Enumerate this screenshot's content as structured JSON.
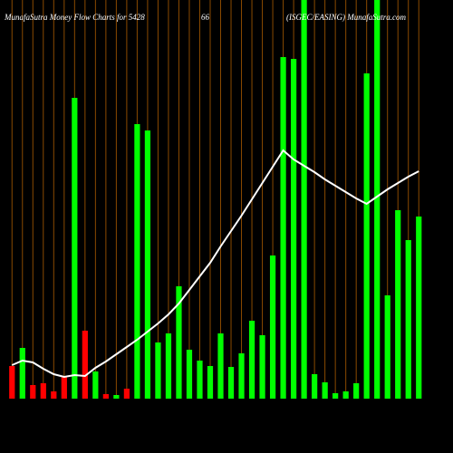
{
  "chart_data": {
    "type": "bar",
    "title": "MunafaSutra  Money Flow  Charts for 5428",
    "subtitle": "66",
    "source": "(ISGEC/EASING) MunafaSutra.com",
    "categories": [
      null,
      null,
      null,
      null,
      null,
      null,
      null,
      null,
      null,
      null,
      null,
      null,
      null,
      null,
      null,
      null,
      null,
      null,
      null,
      null,
      null,
      null,
      null,
      null,
      null,
      null,
      null,
      null,
      null,
      null,
      null,
      null,
      null,
      null,
      null,
      null,
      null,
      null,
      null,
      null
    ],
    "values": [
      36,
      56,
      15,
      17,
      8,
      25,
      332,
      75,
      30,
      5,
      4,
      11,
      303,
      296,
      62,
      72,
      124,
      54,
      42,
      36,
      72,
      35,
      50,
      86,
      70,
      158,
      377,
      375,
      440,
      27,
      18,
      6,
      8,
      17,
      359,
      440,
      114,
      208,
      175,
      201
    ],
    "colors": [
      "#ff0000",
      "#00ff00",
      "#ff0000",
      "#ff0000",
      "#ff0000",
      "#ff0000",
      "#00ff00",
      "#ff0000",
      "#00ff00",
      "#ff0000",
      "#00ff00",
      "#ff0000",
      "#00ff00",
      "#00ff00",
      "#00ff00",
      "#00ff00",
      "#00ff00",
      "#00ff00",
      "#00ff00",
      "#00ff00",
      "#00ff00",
      "#00ff00",
      "#00ff00",
      "#00ff00",
      "#00ff00",
      "#00ff00",
      "#00ff00",
      "#00ff00",
      "#00ff00",
      "#00ff00",
      "#00ff00",
      "#00ff00",
      "#00ff00",
      "#00ff00",
      "#00ff00",
      "#00ff00",
      "#00ff00",
      "#00ff00",
      "#00ff00",
      "#00ff00"
    ],
    "line_values": [
      37,
      42,
      40,
      33,
      27,
      24,
      26,
      25,
      34,
      41,
      49,
      57,
      65,
      74,
      83,
      93,
      105,
      120,
      135,
      150,
      168,
      185,
      202,
      220,
      238,
      256,
      274,
      264,
      257,
      250,
      242,
      235,
      228,
      221,
      215,
      223,
      231,
      238,
      245,
      251
    ],
    "line_color": "#ffffff",
    "grid_color": "#8a4a00",
    "ylim": [
      0,
      440
    ]
  }
}
